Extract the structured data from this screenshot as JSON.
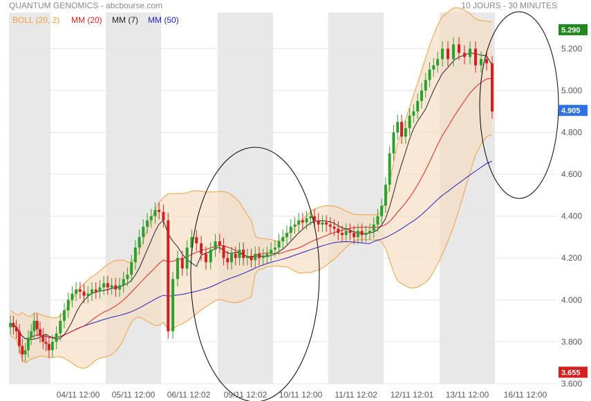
{
  "header": {
    "title": "QUANTUM GENOMICS - abcbourse.com",
    "period": "10 JOURS - 30 MINUTES"
  },
  "legend": [
    {
      "label": "BOLL (20, 2)",
      "color": "#f0a040"
    },
    {
      "label": "MM (20)",
      "color": "#e02020"
    },
    {
      "label": "MM (7)",
      "color": "#222222"
    },
    {
      "label": "MM (50)",
      "color": "#2020c0"
    }
  ],
  "price_labels": {
    "high": {
      "text": "5.290",
      "value": 5.29,
      "color": "#1e8a1e"
    },
    "last": {
      "text": "4.905",
      "value": 4.905,
      "color": "#3070e0"
    },
    "low": {
      "text": "3.655",
      "value": 3.655,
      "color": "#d42020"
    }
  },
  "chart_data": {
    "type": "candlestick",
    "ylim": [
      3.6,
      5.3
    ],
    "yticks": [
      "3.600",
      "3.800",
      "4.000",
      "4.200",
      "4.400",
      "4.600",
      "4.800",
      "5.000",
      "5.200"
    ],
    "xticks": [
      "04/11 12:00",
      "05/11 12:00",
      "06/11 12:02",
      "09/11 12:02",
      "10/11 12:00",
      "11/11 12:02",
      "12/11 12:01",
      "13/11 12:00",
      "16/11 12:00"
    ],
    "days": [
      {
        "close": [
          3.89,
          3.87,
          3.85,
          3.78,
          3.74,
          3.76,
          3.82,
          3.85,
          3.9,
          3.86,
          3.83,
          3.8,
          3.79,
          3.76
        ]
      },
      {
        "close": [
          3.8,
          3.84,
          3.9,
          3.95,
          4.0,
          4.03,
          4.05,
          4.04,
          4.02,
          4.03,
          4.05,
          4.04,
          4.06,
          4.08
        ]
      },
      {
        "close": [
          4.06,
          4.07,
          4.05,
          4.07,
          4.1,
          4.12,
          4.18,
          4.25,
          4.3,
          4.35,
          4.38,
          4.4,
          4.43,
          4.42
        ]
      },
      {
        "close": [
          4.38,
          3.85,
          4.1,
          4.2,
          4.15,
          4.25,
          4.3,
          4.27,
          4.22,
          4.18,
          4.24,
          4.28
        ]
      },
      {
        "close": [
          4.26,
          4.2,
          4.18,
          4.22,
          4.2,
          4.24,
          4.2,
          4.21,
          4.19,
          4.22,
          4.2,
          4.21,
          4.22,
          4.24
        ]
      },
      {
        "close": [
          4.25,
          4.28,
          4.3,
          4.32,
          4.35,
          4.36,
          4.38,
          4.37,
          4.39,
          4.4,
          4.38,
          4.36,
          4.37,
          4.36
        ]
      },
      {
        "close": [
          4.35,
          4.34,
          4.32,
          4.31,
          4.33,
          4.32,
          4.3,
          4.33,
          4.31,
          4.32,
          4.33,
          4.36,
          4.4,
          4.45
        ]
      },
      {
        "close": [
          4.55,
          4.7,
          4.8,
          4.85,
          4.78,
          4.82,
          4.88,
          4.9,
          4.95,
          5.0,
          5.05,
          5.1,
          5.12,
          5.15
        ]
      },
      {
        "close": [
          5.2,
          5.15,
          5.22,
          5.18,
          5.16,
          5.2,
          5.12,
          5.15,
          5.13,
          4.9
        ]
      }
    ]
  }
}
